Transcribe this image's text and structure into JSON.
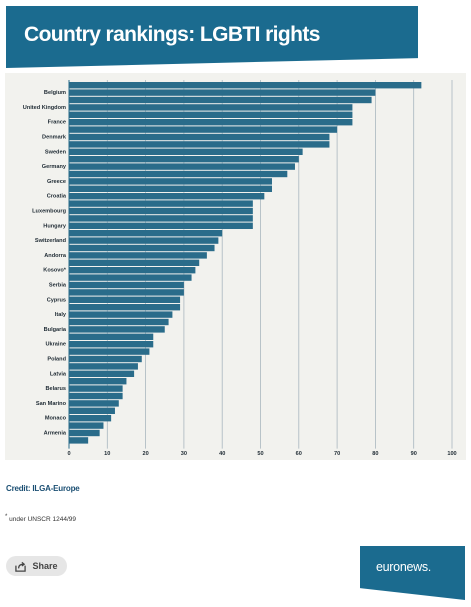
{
  "header": {
    "title": "Country rankings: LGBTI rights"
  },
  "chart_data": {
    "type": "bar",
    "orientation": "horizontal",
    "title": "Country rankings: LGBTI rights",
    "xlim": [
      0,
      100
    ],
    "xticks": [
      0,
      10,
      20,
      30,
      40,
      50,
      60,
      70,
      80,
      90,
      100
    ],
    "grid": true,
    "legend": "none",
    "color": "#2a6c8a",
    "categories": [
      "",
      "Belgium",
      "",
      "United Kingdom",
      "",
      "France",
      "",
      "Denmark",
      "",
      "Sweden",
      "",
      "Germany",
      "",
      "Greece",
      "",
      "Croatia",
      "",
      "Luxembourg",
      "",
      "Hungary",
      "",
      "Switzerland",
      "",
      "Andorra",
      "",
      "Kosovo*",
      "",
      "Serbia",
      "",
      "Cyprus",
      "",
      "Italy",
      "",
      "Bulgaria",
      "",
      "Ukraine",
      "",
      "Poland",
      "",
      "Latvia",
      "",
      "Belarus",
      "",
      "San Marino",
      "",
      "Monaco",
      "",
      "Armenia",
      ""
    ],
    "values": [
      92,
      80,
      79,
      74,
      74,
      74,
      70,
      68,
      68,
      61,
      60,
      59,
      57,
      53,
      53,
      51,
      48,
      48,
      48,
      48,
      40,
      39,
      38,
      36,
      34,
      33,
      32,
      30,
      30,
      29,
      29,
      27,
      26,
      25,
      22,
      22,
      21,
      19,
      18,
      17,
      15,
      14,
      14,
      13,
      12,
      11,
      9,
      8,
      5
    ]
  },
  "credit": "Credit: ILGA-Europe",
  "footnote": {
    "mark": "*",
    "text": " under UNSCR 1244/99"
  },
  "share": {
    "label": "Share"
  },
  "brand": {
    "name": "euronews",
    "dot": "."
  },
  "colors": {
    "accent": "#1b6b8f",
    "bar": "#2a6c8a",
    "panel": "#f2f2ee"
  }
}
